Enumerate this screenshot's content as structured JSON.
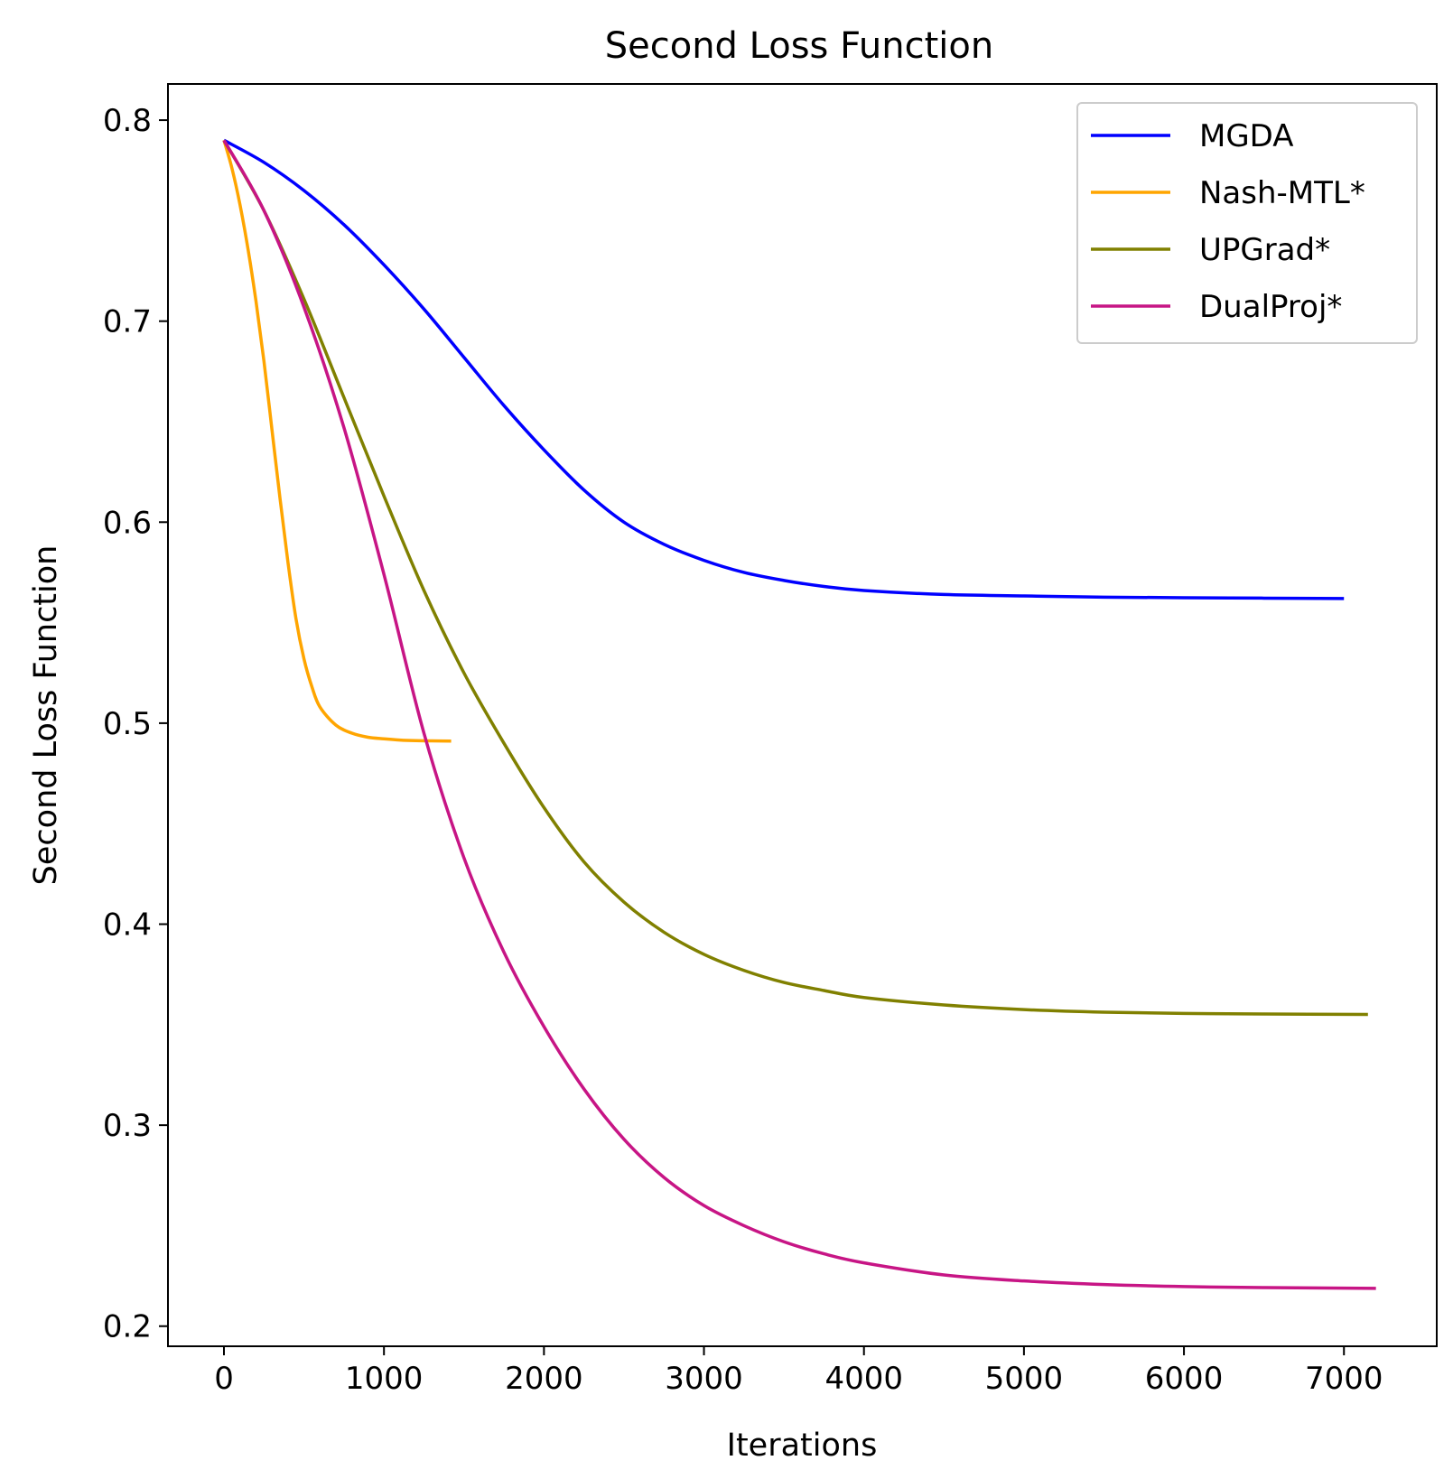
{
  "chart_data": {
    "type": "line",
    "title": "Second Loss Function",
    "xlabel": "Iterations",
    "ylabel": "Second Loss Function",
    "xlim": [
      -350,
      7580
    ],
    "ylim": [
      0.19,
      0.818
    ],
    "xticks": [
      0,
      1000,
      2000,
      3000,
      4000,
      5000,
      6000,
      7000
    ],
    "xtick_labels": [
      "0",
      "1000",
      "2000",
      "3000",
      "4000",
      "5000",
      "6000",
      "7000"
    ],
    "yticks": [
      0.2,
      0.3,
      0.4,
      0.5,
      0.6,
      0.7,
      0.8
    ],
    "ytick_labels": [
      "0.2",
      "0.3",
      "0.4",
      "0.5",
      "0.6",
      "0.7",
      "0.8"
    ],
    "grid": false,
    "legend_position": "top-right",
    "series": [
      {
        "name": "MGDA",
        "color": "#0000ff",
        "x": [
          0,
          250,
          500,
          750,
          1000,
          1250,
          1500,
          1750,
          2000,
          2250,
          2500,
          2750,
          3000,
          3250,
          3500,
          3750,
          4000,
          4500,
          5000,
          5500,
          6000,
          6500,
          7000
        ],
        "y": [
          0.79,
          0.779,
          0.765,
          0.748,
          0.728,
          0.706,
          0.682,
          0.658,
          0.636,
          0.616,
          0.6,
          0.589,
          0.581,
          0.575,
          0.571,
          0.568,
          0.566,
          0.564,
          0.5633,
          0.5627,
          0.5624,
          0.5622,
          0.562
        ]
      },
      {
        "name": "Nash-MTL*",
        "color": "#ffa500",
        "x": [
          0,
          50,
          100,
          150,
          200,
          250,
          300,
          350,
          400,
          450,
          500,
          550,
          600,
          700,
          800,
          900,
          1000,
          1100,
          1200,
          1300,
          1420
        ],
        "y": [
          0.79,
          0.776,
          0.758,
          0.736,
          0.71,
          0.68,
          0.646,
          0.612,
          0.58,
          0.552,
          0.532,
          0.518,
          0.508,
          0.499,
          0.495,
          0.493,
          0.4922,
          0.4916,
          0.4913,
          0.4912,
          0.4911
        ]
      },
      {
        "name": "UPGrad*",
        "color": "#808000",
        "x": [
          0,
          250,
          500,
          750,
          1000,
          1250,
          1500,
          1750,
          2000,
          2250,
          2500,
          2750,
          3000,
          3250,
          3500,
          3750,
          4000,
          4500,
          5000,
          5500,
          6000,
          6500,
          7150
        ],
        "y": [
          0.79,
          0.755,
          0.711,
          0.662,
          0.613,
          0.566,
          0.525,
          0.49,
          0.458,
          0.431,
          0.411,
          0.396,
          0.385,
          0.377,
          0.371,
          0.367,
          0.3635,
          0.3598,
          0.3575,
          0.3562,
          0.3556,
          0.3553,
          0.3551
        ]
      },
      {
        "name": "DualProj*",
        "color": "#c71585",
        "x": [
          0,
          250,
          500,
          750,
          1000,
          1250,
          1500,
          1750,
          2000,
          2250,
          2500,
          2750,
          3000,
          3250,
          3500,
          3750,
          4000,
          4500,
          5000,
          5500,
          6000,
          6500,
          7200
        ],
        "y": [
          0.79,
          0.755,
          0.707,
          0.647,
          0.574,
          0.495,
          0.433,
          0.386,
          0.349,
          0.318,
          0.293,
          0.274,
          0.26,
          0.25,
          0.242,
          0.236,
          0.2315,
          0.2255,
          0.2225,
          0.2207,
          0.2197,
          0.2192,
          0.2188
        ]
      }
    ]
  }
}
